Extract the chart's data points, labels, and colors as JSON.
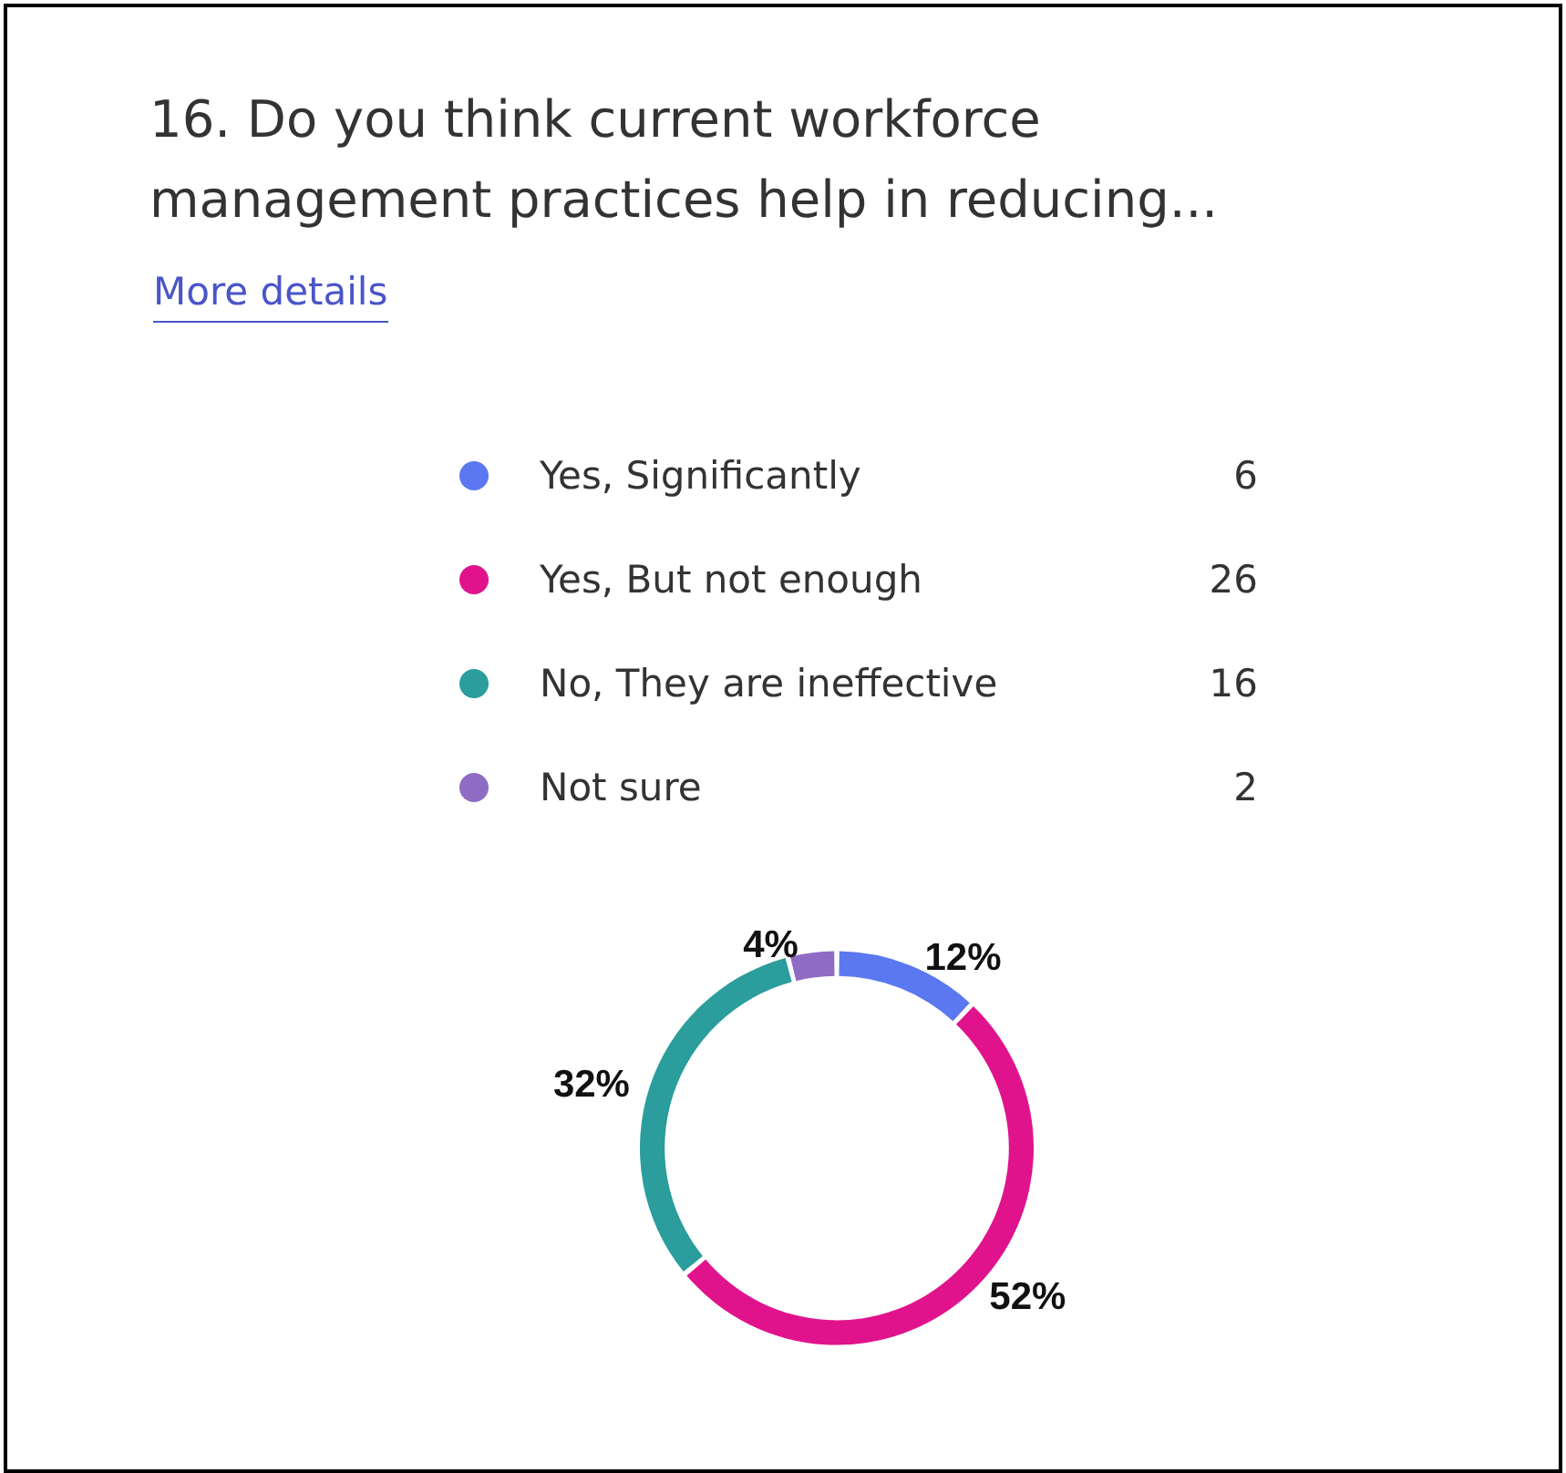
{
  "chart_data": {
    "type": "donut",
    "title": "16.  Do you think current workforce management practices help in reducing...",
    "annotations": [
      "More details",
      "6",
      "26",
      "16",
      "2"
    ],
    "categories": [
      "Yes, Significantly",
      "Yes, But not enough",
      "No, They are ineffective",
      "Not sure"
    ],
    "values": [
      12,
      52,
      32,
      4
    ],
    "colors": [
      "#5b78f0",
      "#e0138c",
      "#2a9d9c",
      "#8e6cc4"
    ],
    "value_labels": [
      "12%",
      "52%",
      "32%",
      "4%"
    ],
    "legend": "top"
  }
}
